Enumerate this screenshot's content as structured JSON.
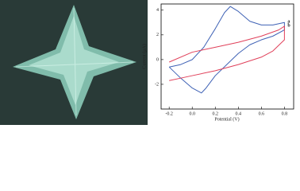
{
  "chart_data": {
    "type": "line",
    "x_label": "Potential (V)",
    "y_label": "Current (μA)",
    "xlim": [
      -0.27,
      0.88
    ],
    "ylim": [
      -4,
      4.5
    ],
    "xticks": [
      -0.2,
      {
        "value": 0,
        "label": "0.0"
      },
      0.2,
      0.4,
      0.6,
      0.8
    ],
    "yticks": [
      -2,
      0,
      2,
      4
    ],
    "series": [
      {
        "name": "a",
        "color": "#3f62b5",
        "x": [
          -0.2,
          -0.1,
          0.0,
          0.1,
          0.2,
          0.28,
          0.33,
          0.4,
          0.5,
          0.6,
          0.7,
          0.8,
          0.8,
          0.7,
          0.6,
          0.5,
          0.4,
          0.3,
          0.2,
          0.12,
          0.08,
          0.0,
          -0.1,
          -0.2
        ],
        "values": [
          -0.6,
          -0.4,
          0.0,
          1.0,
          2.5,
          3.8,
          4.3,
          3.9,
          3.1,
          2.8,
          2.8,
          3.0,
          2.4,
          1.9,
          1.6,
          1.2,
          0.5,
          -0.4,
          -1.3,
          -2.3,
          -2.7,
          -2.3,
          -1.5,
          -0.6
        ]
      },
      {
        "name": "b",
        "color": "#e0405a",
        "x": [
          -0.2,
          0.0,
          0.2,
          0.4,
          0.6,
          0.75,
          0.8,
          0.8,
          0.7,
          0.6,
          0.4,
          0.2,
          0.0,
          -0.1,
          -0.2
        ],
        "values": [
          -0.2,
          0.6,
          1.0,
          1.4,
          1.9,
          2.4,
          2.7,
          1.6,
          0.7,
          0.2,
          -0.4,
          -0.9,
          -1.3,
          -1.5,
          -1.7
        ]
      }
    ]
  }
}
